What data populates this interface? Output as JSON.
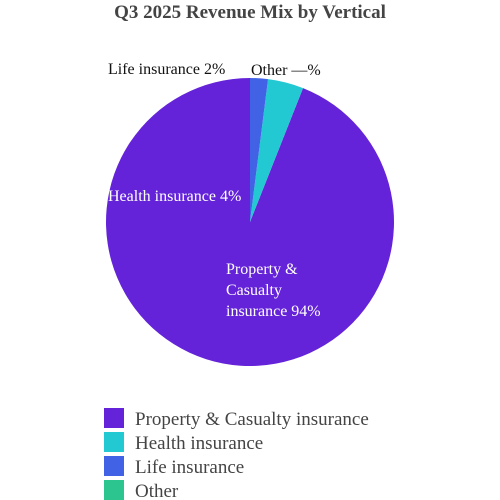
{
  "chart_data": {
    "type": "pie",
    "title": "Q3 2025 Revenue Mix by Vertical",
    "slices": [
      {
        "name": "Property & Casualty insurance",
        "value": 94,
        "display": "94%",
        "color": "#6423d8"
      },
      {
        "name": "Health insurance",
        "value": 4,
        "display": "4%",
        "color": "#22c9d3"
      },
      {
        "name": "Life insurance",
        "value": 2,
        "display": "2%",
        "color": "#4262e6"
      },
      {
        "name": "Other",
        "value": 0,
        "display": "—%",
        "color": "#2cc48f"
      }
    ],
    "legend_position": "bottom-left",
    "start_angle_deg": 0,
    "direction": "counterclockwise"
  }
}
